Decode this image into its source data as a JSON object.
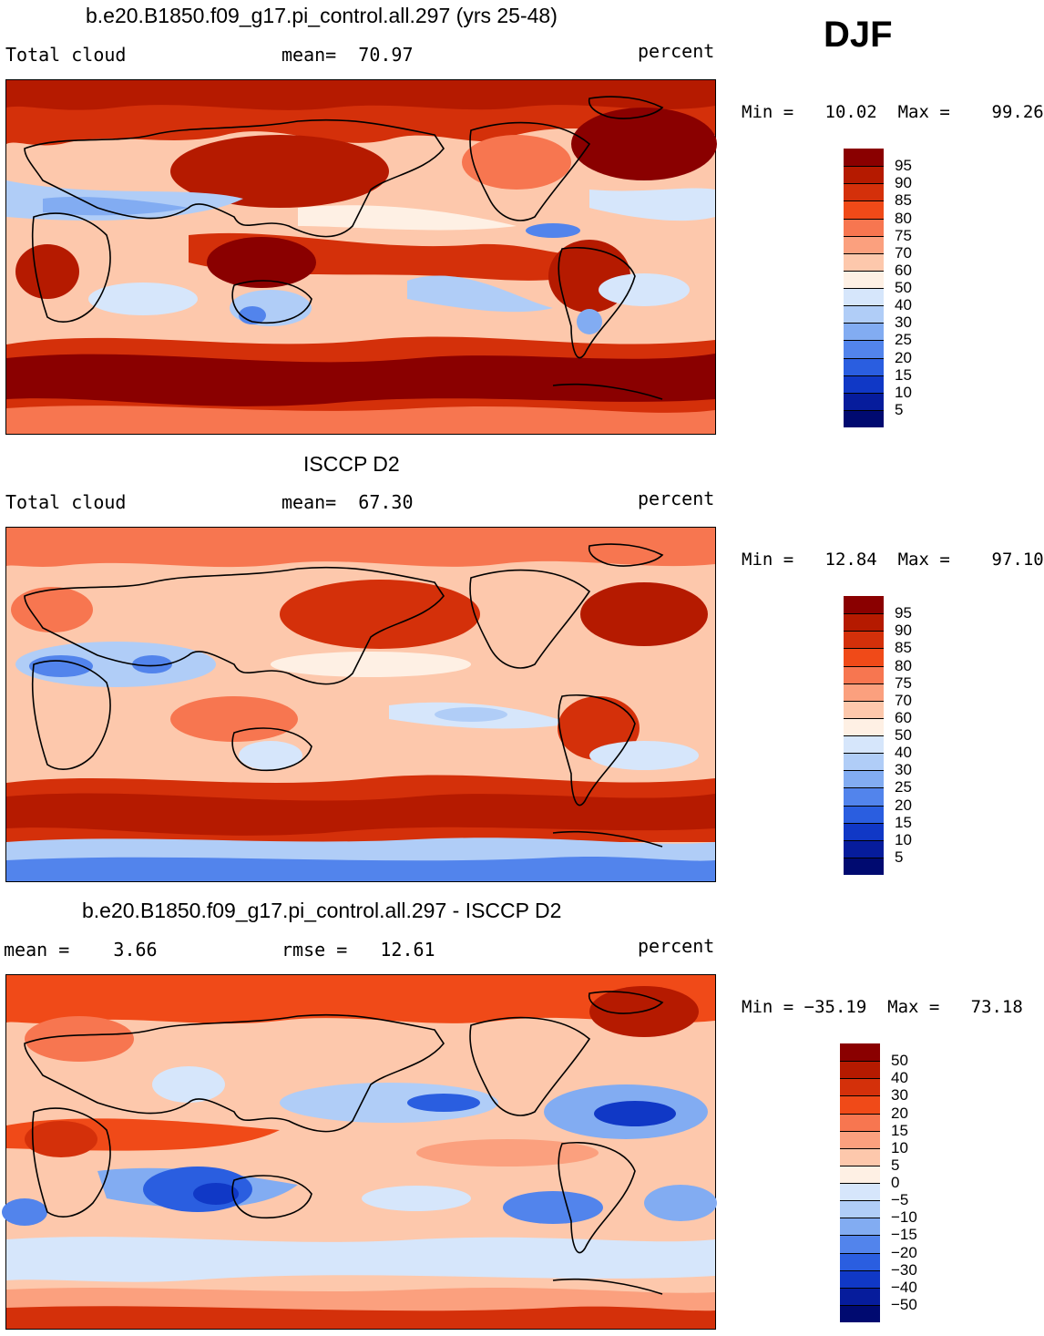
{
  "season": "DJF",
  "panels": [
    {
      "title": "b.e20.B1850.f09_g17.pi_control.all.297 (yrs 25-48)",
      "left_label": "Total cloud",
      "center_label": "mean=  70.97",
      "right_label": "percent",
      "minmax_label": "Min =   10.02  Max =    99.26",
      "colorbar": {
        "labels": [
          "95",
          "90",
          "85",
          "80",
          "75",
          "70",
          "60",
          "50",
          "40",
          "30",
          "25",
          "20",
          "15",
          "10",
          "5"
        ],
        "colors": [
          "#8a0000",
          "#b51a00",
          "#d4300a",
          "#f04a18",
          "#f77650",
          "#fba07e",
          "#fdc8ac",
          "#fef0e4",
          "#d6e6fb",
          "#b0cdf7",
          "#82acf2",
          "#5284ec",
          "#2a5ee0",
          "#1038c6",
          "#061c9c",
          "#000a70"
        ]
      }
    },
    {
      "title": "ISCCP D2",
      "left_label": "Total cloud",
      "center_label": "mean=  67.30",
      "right_label": "percent",
      "minmax_label": "Min =   12.84  Max =    97.10",
      "colorbar": {
        "labels": [
          "95",
          "90",
          "85",
          "80",
          "75",
          "70",
          "60",
          "50",
          "40",
          "30",
          "25",
          "20",
          "15",
          "10",
          "5"
        ],
        "colors": [
          "#8a0000",
          "#b51a00",
          "#d4300a",
          "#f04a18",
          "#f77650",
          "#fba07e",
          "#fdc8ac",
          "#fef0e4",
          "#d6e6fb",
          "#b0cdf7",
          "#82acf2",
          "#5284ec",
          "#2a5ee0",
          "#1038c6",
          "#061c9c",
          "#000a70"
        ]
      }
    },
    {
      "title": "b.e20.B1850.f09_g17.pi_control.all.297 - ISCCP D2",
      "left_label": "mean =    3.66",
      "center_label": "rmse =   12.61",
      "right_label": "percent",
      "minmax_label": "Min = −35.19  Max =   73.18",
      "colorbar": {
        "labels": [
          "50",
          "40",
          "30",
          "20",
          "15",
          "10",
          "5",
          "0",
          "−5",
          "−10",
          "−15",
          "−20",
          "−30",
          "−40",
          "−50"
        ],
        "colors": [
          "#8a0000",
          "#b51a00",
          "#d4300a",
          "#f04a18",
          "#f77650",
          "#fba07e",
          "#fdc8ac",
          "#fef0e4",
          "#d6e6fb",
          "#b0cdf7",
          "#82acf2",
          "#5284ec",
          "#2a5ee0",
          "#1038c6",
          "#061c9c",
          "#000a70"
        ]
      }
    }
  ]
}
